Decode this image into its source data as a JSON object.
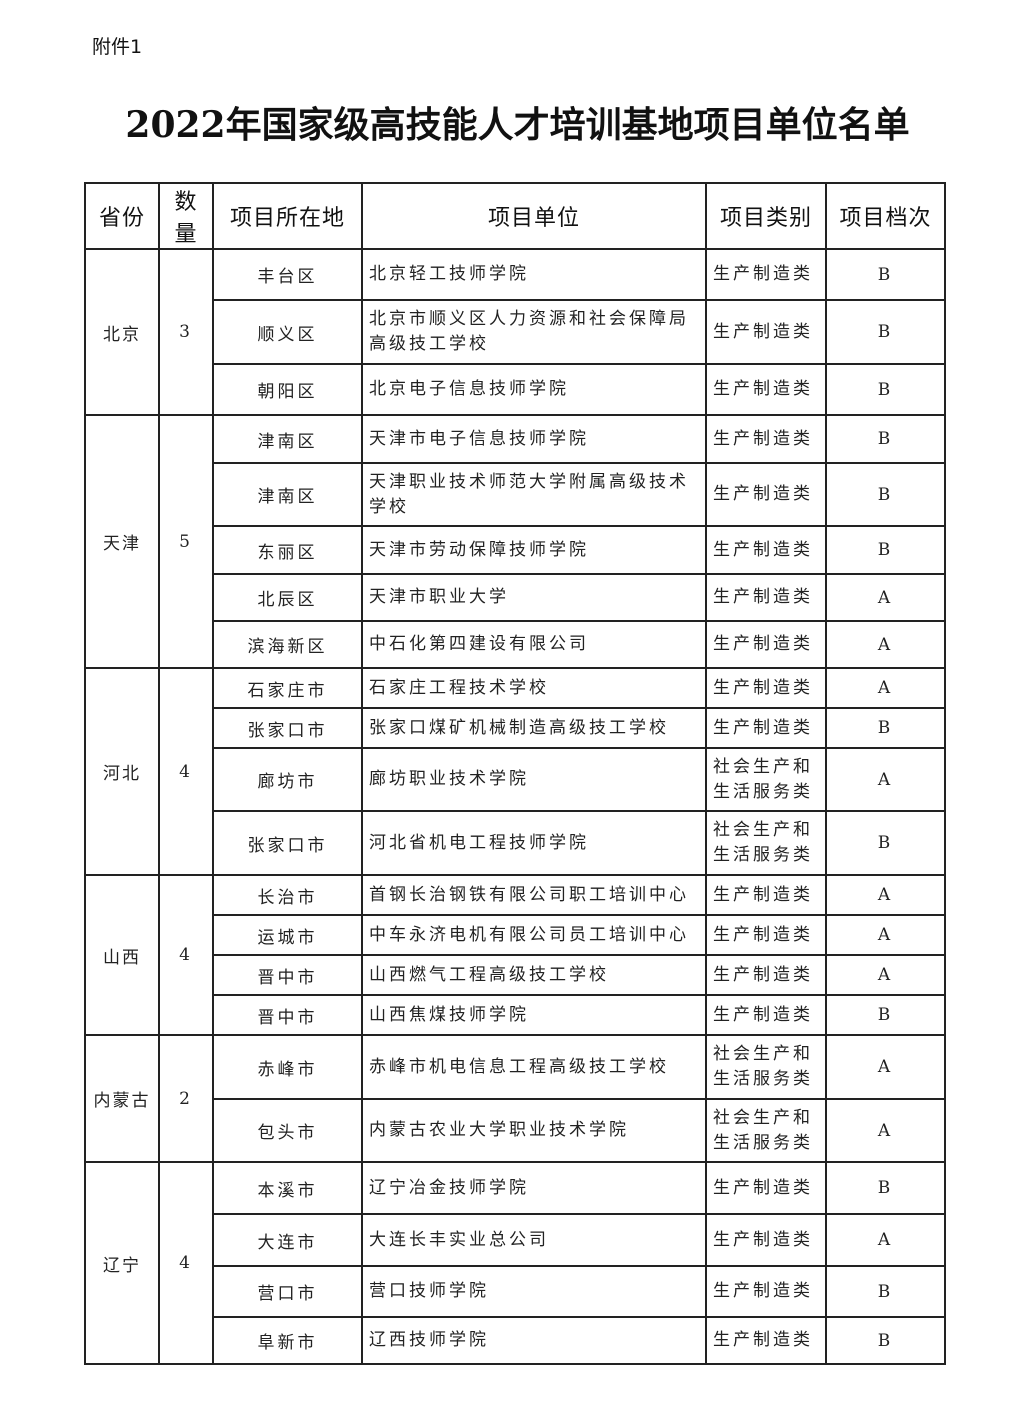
{
  "attachment_label": "附件1",
  "title": "2022年国家级高技能人才培训基地项目单位名单",
  "table": {
    "headers": [
      "省份",
      "数量",
      "项目所在地",
      "项目单位",
      "项目类别",
      "项目档次"
    ],
    "groups": [
      {
        "province": "北京",
        "count": "3",
        "rows": [
          {
            "location": "丰台区",
            "unit": "北京轻工技师学院",
            "category": "生产制造类",
            "grade": "B"
          },
          {
            "location": "顺义区",
            "unit": "北京市顺义区人力资源和社会保障局高级技工学校",
            "category": "生产制造类",
            "grade": "B"
          },
          {
            "location": "朝阳区",
            "unit": "北京电子信息技师学院",
            "category": "生产制造类",
            "grade": "B"
          }
        ]
      },
      {
        "province": "天津",
        "count": "5",
        "rows": [
          {
            "location": "津南区",
            "unit": "天津市电子信息技师学院",
            "category": "生产制造类",
            "grade": "B"
          },
          {
            "location": "津南区",
            "unit": "天津职业技术师范大学附属高级技术学校",
            "category": "生产制造类",
            "grade": "B"
          },
          {
            "location": "东丽区",
            "unit": "天津市劳动保障技师学院",
            "category": "生产制造类",
            "grade": "B"
          },
          {
            "location": "北辰区",
            "unit": "天津市职业大学",
            "category": "生产制造类",
            "grade": "A"
          },
          {
            "location": "滨海新区",
            "unit": "中石化第四建设有限公司",
            "category": "生产制造类",
            "grade": "A"
          }
        ]
      },
      {
        "province": "河北",
        "count": "4",
        "rows": [
          {
            "location": "石家庄市",
            "unit": "石家庄工程技术学校",
            "category": "生产制造类",
            "grade": "A"
          },
          {
            "location": "张家口市",
            "unit": "张家口煤矿机械制造高级技工学校",
            "category": "生产制造类",
            "grade": "B"
          },
          {
            "location": "廊坊市",
            "unit": "廊坊职业技术学院",
            "category": "社会生产和生活服务类",
            "grade": "A"
          },
          {
            "location": "张家口市",
            "unit": "河北省机电工程技师学院",
            "category": "社会生产和生活服务类",
            "grade": "B"
          }
        ]
      },
      {
        "province": "山西",
        "count": "4",
        "rows": [
          {
            "location": "长治市",
            "unit": "首钢长治钢铁有限公司职工培训中心",
            "category": "生产制造类",
            "grade": "A"
          },
          {
            "location": "运城市",
            "unit": "中车永济电机有限公司员工培训中心",
            "category": "生产制造类",
            "grade": "A"
          },
          {
            "location": "晋中市",
            "unit": "山西燃气工程高级技工学校",
            "category": "生产制造类",
            "grade": "A"
          },
          {
            "location": "晋中市",
            "unit": "山西焦煤技师学院",
            "category": "生产制造类",
            "grade": "B"
          }
        ]
      },
      {
        "province": "内蒙古",
        "count": "2",
        "rows": [
          {
            "location": "赤峰市",
            "unit": "赤峰市机电信息工程高级技工学校",
            "category": "社会生产和生活服务类",
            "grade": "A"
          },
          {
            "location": "包头市",
            "unit": "内蒙古农业大学职业技术学院",
            "category": "社会生产和生活服务类",
            "grade": "A"
          }
        ]
      },
      {
        "province": "辽宁",
        "count": "4",
        "rows": [
          {
            "location": "本溪市",
            "unit": "辽宁冶金技师学院",
            "category": "生产制造类",
            "grade": "B"
          },
          {
            "location": "大连市",
            "unit": "大连长丰实业总公司",
            "category": "生产制造类",
            "grade": "A"
          },
          {
            "location": "营口市",
            "unit": "营口技师学院",
            "category": "生产制造类",
            "grade": "B"
          },
          {
            "location": "阜新市",
            "unit": "辽西技师学院",
            "category": "生产制造类",
            "grade": "B"
          }
        ]
      }
    ]
  }
}
